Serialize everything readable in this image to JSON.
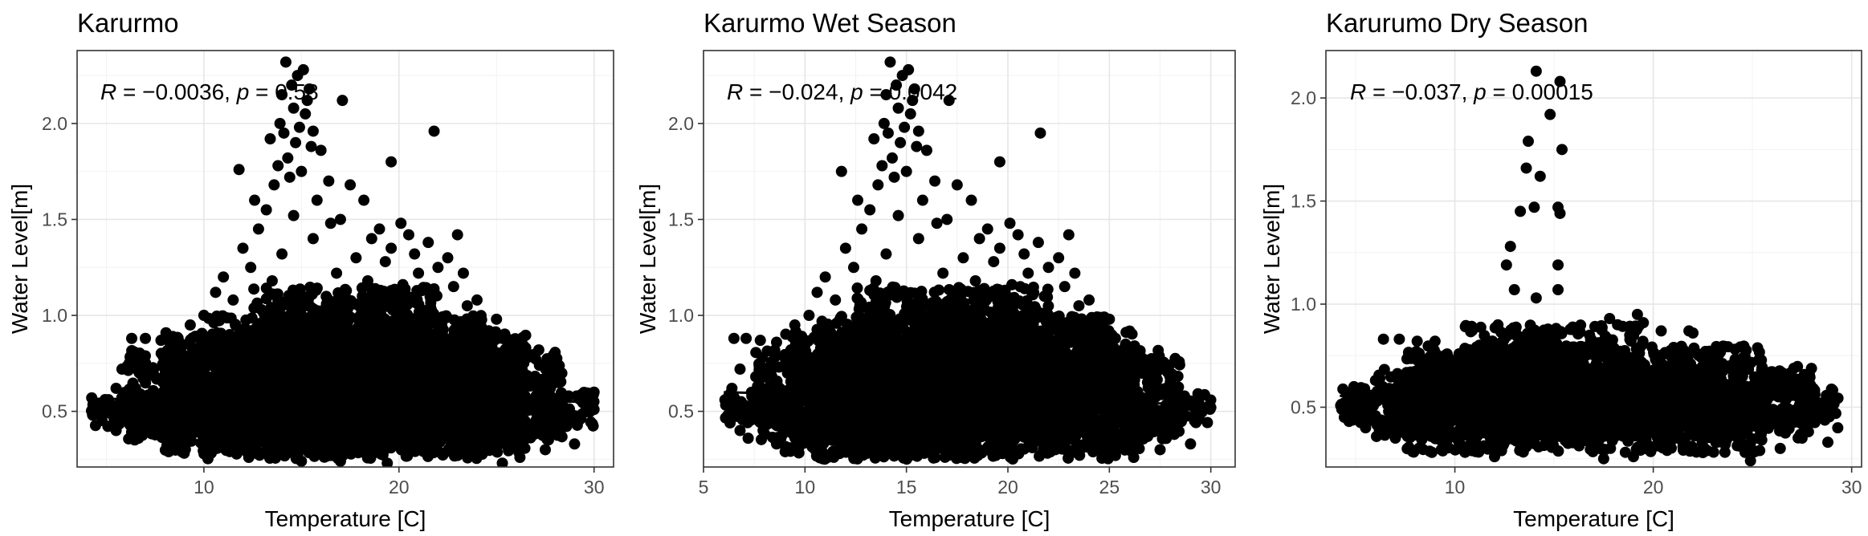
{
  "chart_data": [
    {
      "type": "scatter",
      "title": "Karurmo",
      "xlabel": "Temperature [C]",
      "ylabel": "Water Level[m]",
      "xlim": [
        3.5,
        31
      ],
      "ylim": [
        0.21,
        2.38
      ],
      "xticks": [
        10,
        20,
        30
      ],
      "xtick_labels": [
        "10",
        "20",
        "30"
      ],
      "yticks": [
        0.5,
        1.0,
        1.5,
        2.0
      ],
      "ytick_labels": [
        "0.5",
        "1.0",
        "1.5",
        "2.0"
      ],
      "grid": true,
      "annotation": {
        "r_label": "R",
        "r_value": " = −0.0036, ",
        "p_label": "p",
        "p_value": " = 0.58"
      },
      "regression": {
        "x": [
          4.2,
          29.8
        ],
        "y": [
          0.565,
          0.55
        ]
      },
      "cloud": [
        {
          "x0": 4.2,
          "x1": 30.0,
          "y0": 0.42,
          "y1": 0.6
        },
        {
          "x0": 6.0,
          "x1": 28.5,
          "y0": 0.35,
          "y1": 0.82
        },
        {
          "x0": 8.0,
          "x1": 26.5,
          "y0": 0.28,
          "y1": 0.92
        },
        {
          "x0": 10.0,
          "x1": 24.5,
          "y0": 0.25,
          "y1": 1.0
        },
        {
          "x0": 12.5,
          "x1": 22.0,
          "y0": 0.4,
          "y1": 1.15
        }
      ],
      "points": [
        [
          14.2,
          2.32
        ],
        [
          15.1,
          2.28
        ],
        [
          14.8,
          2.25
        ],
        [
          14.5,
          2.2
        ],
        [
          15.4,
          2.18
        ],
        [
          14.0,
          2.15
        ],
        [
          15.3,
          2.12
        ],
        [
          17.1,
          2.12
        ],
        [
          14.6,
          2.08
        ],
        [
          15.2,
          2.05
        ],
        [
          13.9,
          2.0
        ],
        [
          14.9,
          1.98
        ],
        [
          21.8,
          1.96
        ],
        [
          15.6,
          1.96
        ],
        [
          14.1,
          1.95
        ],
        [
          13.4,
          1.92
        ],
        [
          14.7,
          1.9
        ],
        [
          15.5,
          1.88
        ],
        [
          16.0,
          1.86
        ],
        [
          14.3,
          1.82
        ],
        [
          19.6,
          1.8
        ],
        [
          13.8,
          1.78
        ],
        [
          11.8,
          1.76
        ],
        [
          15.0,
          1.75
        ],
        [
          14.4,
          1.72
        ],
        [
          16.4,
          1.7
        ],
        [
          13.6,
          1.68
        ],
        [
          17.5,
          1.68
        ],
        [
          18.2,
          1.6
        ],
        [
          12.6,
          1.6
        ],
        [
          15.8,
          1.6
        ],
        [
          13.2,
          1.55
        ],
        [
          14.6,
          1.52
        ],
        [
          17.0,
          1.5
        ],
        [
          16.5,
          1.48
        ],
        [
          20.1,
          1.48
        ],
        [
          19.0,
          1.45
        ],
        [
          20.5,
          1.42
        ],
        [
          23.0,
          1.42
        ],
        [
          12.8,
          1.45
        ],
        [
          15.6,
          1.4
        ],
        [
          18.6,
          1.4
        ],
        [
          21.5,
          1.38
        ],
        [
          12.0,
          1.35
        ],
        [
          19.6,
          1.35
        ],
        [
          14.0,
          1.32
        ],
        [
          20.8,
          1.32
        ],
        [
          22.5,
          1.3
        ],
        [
          17.8,
          1.3
        ],
        [
          19.3,
          1.28
        ],
        [
          22.0,
          1.25
        ],
        [
          12.4,
          1.25
        ],
        [
          16.8,
          1.22
        ],
        [
          21.0,
          1.22
        ],
        [
          23.3,
          1.22
        ],
        [
          11.0,
          1.2
        ],
        [
          18.4,
          1.18
        ],
        [
          13.5,
          1.18
        ],
        [
          20.2,
          1.16
        ],
        [
          22.8,
          1.15
        ],
        [
          10.6,
          1.12
        ],
        [
          19.0,
          1.12
        ],
        [
          21.8,
          1.1
        ],
        [
          24.0,
          1.08
        ],
        [
          11.5,
          1.08
        ],
        [
          23.5,
          1.05
        ],
        [
          17.2,
          1.05
        ],
        [
          15.2,
          1.05
        ],
        [
          10.0,
          1.0
        ],
        [
          25.0,
          0.98
        ],
        [
          9.3,
          0.95
        ],
        [
          24.6,
          0.92
        ],
        [
          6.3,
          0.88
        ],
        [
          7.0,
          0.88
        ],
        [
          7.8,
          0.87
        ],
        [
          8.6,
          0.86
        ],
        [
          25.8,
          0.85
        ],
        [
          25.3,
          0.88
        ],
        [
          26.5,
          0.8
        ],
        [
          27.2,
          0.74
        ],
        [
          5.8,
          0.72
        ],
        [
          28.0,
          0.68
        ],
        [
          5.5,
          0.62
        ],
        [
          28.7,
          0.58
        ],
        [
          29.4,
          0.55
        ],
        [
          30.0,
          0.51
        ],
        [
          4.3,
          0.48
        ],
        [
          4.7,
          0.5
        ],
        [
          29.2,
          0.45
        ],
        [
          26.5,
          0.42
        ],
        [
          28.2,
          0.38
        ],
        [
          29.0,
          0.33
        ],
        [
          26.2,
          0.26
        ],
        [
          27.5,
          0.3
        ],
        [
          25.3,
          0.23
        ],
        [
          19.4,
          0.23
        ],
        [
          15.0,
          0.24
        ],
        [
          12.3,
          0.26
        ],
        [
          10.5,
          0.3
        ],
        [
          8.6,
          0.33
        ],
        [
          6.5,
          0.36
        ],
        [
          5.5,
          0.4
        ],
        [
          23.0,
          0.27
        ],
        [
          17.0,
          0.24
        ]
      ]
    },
    {
      "type": "scatter",
      "title": "Karurmo Wet Season",
      "xlabel": "Temperature [C]",
      "ylabel": "Water Level[m]",
      "xlim": [
        5,
        31.2
      ],
      "ylim": [
        0.21,
        2.38
      ],
      "xticks": [
        5,
        10,
        15,
        20,
        25,
        30
      ],
      "xtick_labels": [
        "5",
        "10",
        "15",
        "20",
        "25",
        "30"
      ],
      "yticks": [
        0.5,
        1.0,
        1.5,
        2.0
      ],
      "ytick_labels": [
        "0.5",
        "1.0",
        "1.5",
        "2.0"
      ],
      "grid": true,
      "annotation": {
        "r_label": "R",
        "r_value": " = −0.024, ",
        "p_label": "p",
        "p_value": " = 0.0042"
      },
      "regression": {
        "x": [
          6.0,
          29.8
        ],
        "y": [
          0.6,
          0.535
        ]
      },
      "cloud": [
        {
          "x0": 6.0,
          "x1": 30.0,
          "y0": 0.42,
          "y1": 0.6
        },
        {
          "x0": 7.5,
          "x1": 28.5,
          "y0": 0.35,
          "y1": 0.82
        },
        {
          "x0": 9.0,
          "x1": 26.5,
          "y0": 0.28,
          "y1": 0.92
        },
        {
          "x0": 10.5,
          "x1": 25.0,
          "y0": 0.25,
          "y1": 1.0
        },
        {
          "x0": 12.5,
          "x1": 22.0,
          "y0": 0.4,
          "y1": 1.15
        }
      ],
      "points": [
        [
          14.2,
          2.32
        ],
        [
          15.1,
          2.28
        ],
        [
          14.8,
          2.25
        ],
        [
          14.5,
          2.2
        ],
        [
          15.4,
          2.18
        ],
        [
          14.0,
          2.15
        ],
        [
          15.3,
          2.12
        ],
        [
          17.1,
          2.12
        ],
        [
          14.6,
          2.08
        ],
        [
          15.2,
          2.05
        ],
        [
          13.9,
          2.0
        ],
        [
          14.9,
          1.98
        ],
        [
          21.6,
          1.95
        ],
        [
          15.6,
          1.96
        ],
        [
          14.1,
          1.95
        ],
        [
          13.4,
          1.92
        ],
        [
          14.7,
          1.9
        ],
        [
          15.5,
          1.88
        ],
        [
          16.0,
          1.86
        ],
        [
          14.3,
          1.82
        ],
        [
          19.6,
          1.8
        ],
        [
          13.8,
          1.78
        ],
        [
          11.8,
          1.75
        ],
        [
          15.0,
          1.75
        ],
        [
          14.4,
          1.72
        ],
        [
          16.4,
          1.7
        ],
        [
          13.6,
          1.68
        ],
        [
          17.5,
          1.68
        ],
        [
          18.2,
          1.6
        ],
        [
          12.6,
          1.6
        ],
        [
          15.8,
          1.6
        ],
        [
          13.2,
          1.55
        ],
        [
          14.6,
          1.52
        ],
        [
          17.0,
          1.5
        ],
        [
          16.5,
          1.48
        ],
        [
          20.1,
          1.48
        ],
        [
          19.0,
          1.45
        ],
        [
          20.5,
          1.42
        ],
        [
          23.0,
          1.42
        ],
        [
          12.8,
          1.45
        ],
        [
          15.6,
          1.4
        ],
        [
          18.6,
          1.4
        ],
        [
          21.5,
          1.38
        ],
        [
          12.0,
          1.35
        ],
        [
          19.6,
          1.35
        ],
        [
          14.0,
          1.32
        ],
        [
          20.8,
          1.32
        ],
        [
          22.5,
          1.3
        ],
        [
          17.8,
          1.3
        ],
        [
          19.3,
          1.28
        ],
        [
          22.0,
          1.25
        ],
        [
          12.4,
          1.25
        ],
        [
          16.8,
          1.22
        ],
        [
          21.0,
          1.22
        ],
        [
          23.3,
          1.22
        ],
        [
          11.0,
          1.2
        ],
        [
          18.4,
          1.18
        ],
        [
          13.5,
          1.18
        ],
        [
          20.2,
          1.16
        ],
        [
          22.8,
          1.15
        ],
        [
          10.6,
          1.12
        ],
        [
          19.0,
          1.12
        ],
        [
          21.8,
          1.1
        ],
        [
          24.0,
          1.08
        ],
        [
          11.5,
          1.08
        ],
        [
          23.5,
          1.05
        ],
        [
          17.2,
          1.05
        ],
        [
          15.2,
          1.05
        ],
        [
          10.2,
          1.0
        ],
        [
          25.0,
          0.98
        ],
        [
          9.5,
          0.95
        ],
        [
          24.6,
          0.92
        ],
        [
          6.5,
          0.88
        ],
        [
          7.1,
          0.88
        ],
        [
          7.8,
          0.87
        ],
        [
          8.6,
          0.86
        ],
        [
          25.8,
          0.85
        ],
        [
          25.3,
          0.88
        ],
        [
          26.5,
          0.8
        ],
        [
          27.2,
          0.74
        ],
        [
          6.8,
          0.72
        ],
        [
          28.0,
          0.68
        ],
        [
          6.4,
          0.62
        ],
        [
          28.7,
          0.58
        ],
        [
          29.4,
          0.55
        ],
        [
          30.0,
          0.52
        ],
        [
          6.2,
          0.48
        ],
        [
          6.6,
          0.5
        ],
        [
          29.2,
          0.45
        ],
        [
          26.5,
          0.42
        ],
        [
          28.2,
          0.38
        ],
        [
          29.0,
          0.33
        ],
        [
          26.2,
          0.26
        ],
        [
          27.5,
          0.3
        ],
        [
          25.3,
          0.27
        ],
        [
          19.4,
          0.27
        ],
        [
          15.0,
          0.27
        ],
        [
          12.3,
          0.28
        ],
        [
          10.5,
          0.3
        ],
        [
          8.6,
          0.33
        ],
        [
          7.2,
          0.36
        ],
        [
          6.8,
          0.4
        ],
        [
          23.0,
          0.28
        ],
        [
          17.0,
          0.27
        ]
      ]
    },
    {
      "type": "scatter",
      "title": "Karurumo Dry Season",
      "xlabel": "Temperature [C]",
      "ylabel": "Water Level[m]",
      "xlim": [
        3.5,
        30.5
      ],
      "ylim": [
        0.21,
        2.23
      ],
      "xticks": [
        10,
        20,
        30
      ],
      "xtick_labels": [
        "10",
        "20",
        "30"
      ],
      "yticks": [
        0.5,
        1.0,
        1.5,
        2.0
      ],
      "ytick_labels": [
        "0.5",
        "1.0",
        "1.5",
        "2.0"
      ],
      "grid": true,
      "annotation": {
        "r_label": "R",
        "r_value": " = −0.037, ",
        "p_label": "p",
        "p_value": " = 0.00015"
      },
      "regression": {
        "x": [
          4.2,
          29.0
        ],
        "y": [
          0.555,
          0.535
        ]
      },
      "cloud": [
        {
          "x0": 4.2,
          "x1": 29.4,
          "y0": 0.42,
          "y1": 0.6
        },
        {
          "x0": 6.0,
          "x1": 28.0,
          "y0": 0.35,
          "y1": 0.7
        },
        {
          "x0": 7.5,
          "x1": 25.5,
          "y0": 0.28,
          "y1": 0.8
        },
        {
          "x0": 10.5,
          "x1": 19.5,
          "y0": 0.4,
          "y1": 0.9
        }
      ],
      "points": [
        [
          14.1,
          2.13
        ],
        [
          15.3,
          2.08
        ],
        [
          14.8,
          1.92
        ],
        [
          13.7,
          1.79
        ],
        [
          15.4,
          1.75
        ],
        [
          13.6,
          1.66
        ],
        [
          14.3,
          1.62
        ],
        [
          15.2,
          1.47
        ],
        [
          14.0,
          1.47
        ],
        [
          13.3,
          1.45
        ],
        [
          15.3,
          1.44
        ],
        [
          12.8,
          1.28
        ],
        [
          15.2,
          1.19
        ],
        [
          12.6,
          1.19
        ],
        [
          13.0,
          1.07
        ],
        [
          15.2,
          1.07
        ],
        [
          14.1,
          1.03
        ],
        [
          19.2,
          0.95
        ],
        [
          17.8,
          0.93
        ],
        [
          19.5,
          0.91
        ],
        [
          21.8,
          0.87
        ],
        [
          18.2,
          0.9
        ],
        [
          6.4,
          0.83
        ],
        [
          7.2,
          0.83
        ],
        [
          8.1,
          0.82
        ],
        [
          9.0,
          0.82
        ],
        [
          20.4,
          0.87
        ],
        [
          22.0,
          0.86
        ],
        [
          24.5,
          0.65
        ],
        [
          26.0,
          0.6
        ],
        [
          27.5,
          0.55
        ],
        [
          28.4,
          0.52
        ],
        [
          29.2,
          0.47
        ],
        [
          29.3,
          0.4
        ],
        [
          28.8,
          0.33
        ],
        [
          27.5,
          0.35
        ],
        [
          26.4,
          0.3
        ],
        [
          24.9,
          0.24
        ],
        [
          22.5,
          0.28
        ],
        [
          19.0,
          0.26
        ],
        [
          17.5,
          0.25
        ],
        [
          12.0,
          0.26
        ],
        [
          9.5,
          0.3
        ],
        [
          7.0,
          0.35
        ],
        [
          5.5,
          0.4
        ],
        [
          4.3,
          0.49
        ],
        [
          4.9,
          0.52
        ],
        [
          6.0,
          0.63
        ],
        [
          5.4,
          0.58
        ]
      ]
    }
  ]
}
